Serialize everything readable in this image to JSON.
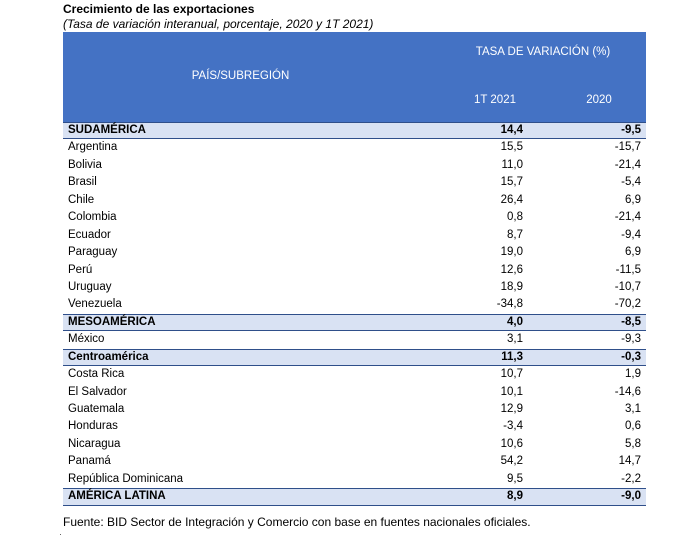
{
  "title": "Crecimiento de las exportaciones",
  "subtitle": "(Tasa de variación interanual, porcentaje, 2020 y 1T 2021)",
  "header": {
    "country_label": "PAÍS/SUBREGIÓN",
    "rate_label": "TASA DE VARIACIÓN (%)",
    "col1": "1T 2021",
    "col2": "2020"
  },
  "rows": [
    {
      "name": "SUDAMÉRICA",
      "v1": "14,4",
      "v2": "-9,5",
      "bold": true
    },
    {
      "name": "Argentina",
      "v1": "15,5",
      "v2": "-15,7"
    },
    {
      "name": "Bolivia",
      "v1": "11,0",
      "v2": "-21,4"
    },
    {
      "name": "Brasil",
      "v1": "15,7",
      "v2": "-5,4"
    },
    {
      "name": "Chile",
      "v1": "26,4",
      "v2": "6,9"
    },
    {
      "name": "Colombia",
      "v1": "0,8",
      "v2": "-21,4"
    },
    {
      "name": "Ecuador",
      "v1": "8,7",
      "v2": "-9,4"
    },
    {
      "name": "Paraguay",
      "v1": "19,0",
      "v2": "6,9"
    },
    {
      "name": "Perú",
      "v1": "12,6",
      "v2": "-11,5"
    },
    {
      "name": "Uruguay",
      "v1": "18,9",
      "v2": "-10,7"
    },
    {
      "name": "Venezuela",
      "v1": "-34,8",
      "v2": "-70,2"
    },
    {
      "name": "MESOAMÉRICA",
      "v1": "4,0",
      "v2": "-8,5",
      "bold": true
    },
    {
      "name": "México",
      "v1": "3,1",
      "v2": "-9,3"
    },
    {
      "name": "Centroamérica",
      "v1": "11,3",
      "v2": "-0,3",
      "bold": true
    },
    {
      "name": "Costa Rica",
      "v1": "10,7",
      "v2": "1,9"
    },
    {
      "name": "El Salvador",
      "v1": "10,1",
      "v2": "-14,6"
    },
    {
      "name": "Guatemala",
      "v1": "12,9",
      "v2": "3,1"
    },
    {
      "name": "Honduras",
      "v1": "-3,4",
      "v2": "0,6"
    },
    {
      "name": "Nicaragua",
      "v1": "10,6",
      "v2": "5,8"
    },
    {
      "name": "Panamá",
      "v1": "54,2",
      "v2": "14,7"
    },
    {
      "name": "República Dominicana",
      "v1": "9,5",
      "v2": "-2,2"
    },
    {
      "name": "AMÉRICA LATINA",
      "v1": "8,9",
      "v2": "-9,0",
      "bold": true
    }
  ],
  "source": "Fuente: BID Sector de Integración y Comercio con base en fuentes nacionales oficiales."
}
